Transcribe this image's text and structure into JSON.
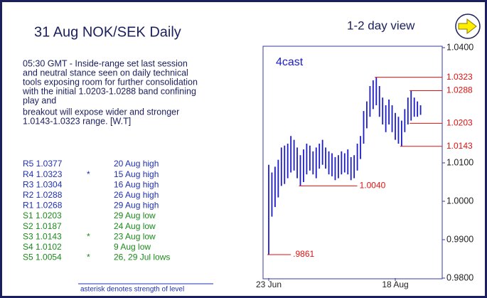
{
  "header": {
    "title": "31 Aug  NOK/SEK Daily",
    "view": "1-2 day view"
  },
  "commentary": [
    "05:30 GMT - Inside-range set last session",
    "and neutral stance seen on daily technical",
    "tools exposing room for further consolidation",
    "with the initial 1.0203-1.0288 band confining",
    "play and",
    "breakout will expose wider and stronger",
    "1.0143-1.0323 range. [W.T]"
  ],
  "levels": {
    "resistance": {
      "color": "#1f2fb4",
      "rows": [
        {
          "level": "R5 1.0377",
          "note": "20 Aug high"
        },
        {
          "level": "R4 1.0323",
          "strength": "*",
          "note": "15 Aug high"
        },
        {
          "level": "R3 1.0304",
          "note": "16 Aug high"
        },
        {
          "level": "R2 1.0288",
          "note": "26 Aug high"
        },
        {
          "level": "R1 1.0268",
          "note": "29 Aug high"
        }
      ]
    },
    "support": {
      "color": "#1a8a1a",
      "rows": [
        {
          "level": "S1 1.0203",
          "note": "29 Aug low"
        },
        {
          "level": "S2 1.0187",
          "note": "24 Aug low"
        },
        {
          "level": "S3 1.0143",
          "strength": "*",
          "note": "23 Aug low"
        },
        {
          "level": "S4 1.0102",
          "note": "9 Aug low"
        },
        {
          "level": "S5 1.0054",
          "strength": "*",
          "note": "26, 29 Jul lows"
        }
      ]
    }
  },
  "footer": "asterisk denotes strength of level",
  "chart_data": {
    "type": "range_bar",
    "label": "4cast",
    "color": "#1c1cc8",
    "categories": [
      "23 Jun",
      null,
      null,
      null,
      null,
      null,
      null,
      null,
      null,
      null,
      null,
      null,
      null,
      null,
      null,
      null,
      null,
      null,
      null,
      null,
      null,
      null,
      null,
      null,
      null,
      null,
      null,
      null,
      null,
      null,
      null,
      null,
      null,
      null,
      null,
      null,
      null,
      null,
      null,
      null,
      "18 Aug",
      null,
      null,
      null,
      null,
      null,
      null,
      null,
      null
    ],
    "highs": [
      1.0095,
      1.0075,
      1.009,
      1.0108,
      1.014,
      1.0145,
      1.015,
      1.017,
      1.016,
      1.014,
      1.012,
      1.0135,
      1.015,
      1.0145,
      1.013,
      1.014,
      1.015,
      1.016,
      1.014,
      1.013,
      1.0125,
      1.0115,
      1.012,
      1.013,
      1.0125,
      1.0135,
      1.0115,
      1.012,
      1.015,
      1.017,
      1.0235,
      1.026,
      1.03,
      1.0315,
      1.0323,
      1.03,
      1.027,
      1.025,
      1.0265,
      1.025,
      1.023,
      1.022,
      1.021,
      1.024,
      1.027,
      1.0288,
      1.027,
      1.026,
      1.025
    ],
    "lows": [
      0.9861,
      0.996,
      0.9985,
      1.001,
      1.004,
      1.0045,
      1.006,
      1.0075,
      1.008,
      1.006,
      1.004,
      1.005,
      1.007,
      1.008,
      1.007,
      1.006,
      1.0085,
      1.0095,
      1.0085,
      1.007,
      1.0065,
      1.0055,
      1.006,
      1.007,
      1.0075,
      1.007,
      1.0055,
      1.006,
      1.008,
      1.011,
      1.015,
      1.019,
      1.022,
      1.024,
      1.025,
      1.022,
      1.02,
      1.018,
      1.02,
      1.018,
      1.016,
      1.015,
      1.0143,
      1.018,
      1.02,
      1.021,
      1.022,
      1.022,
      1.0225
    ],
    "ylim": [
      0.98,
      1.04
    ],
    "yticks": [
      {
        "value": 0.98,
        "label": "0.9800"
      },
      {
        "value": 0.99,
        "label": "0.9900"
      },
      {
        "value": 1.0,
        "label": "1.0000"
      },
      {
        "value": 1.01,
        "label": "1.0100"
      },
      {
        "value": 1.04,
        "label": "1.0400"
      }
    ],
    "annotation_color": "#e01010",
    "annotations": [
      {
        "value": 1.0323,
        "label": "1.0323",
        "start": 34
      },
      {
        "value": 1.0288,
        "label": "1.0288",
        "start": 45
      },
      {
        "value": 1.0203,
        "label": "1.0203",
        "start": 45
      },
      {
        "value": 1.0143,
        "label": "1.0143",
        "start": 42
      },
      {
        "value": 1.004,
        "label": "1.0040",
        "start": 10,
        "end": 28
      },
      {
        "value": 0.9861,
        "label": ".9861",
        "start": 0,
        "end": 7
      }
    ]
  }
}
